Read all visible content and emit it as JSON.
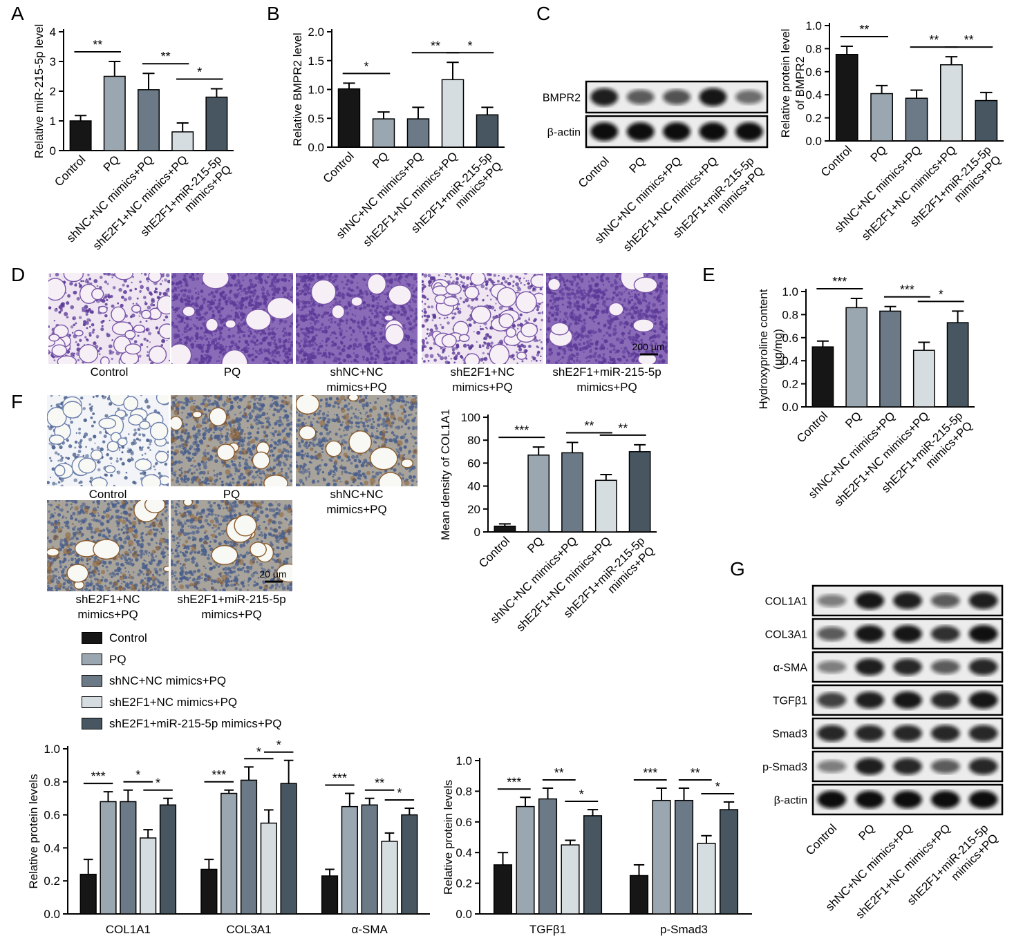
{
  "panel_letters": [
    "A",
    "B",
    "C",
    "D",
    "E",
    "F",
    "G"
  ],
  "colors": {
    "Control": "#161616",
    "PQ": "#9aa6b0",
    "shNC+NC mimics+PQ": "#6b7a86",
    "shE2F1+NC mimics+PQ": "#d6dde0",
    "shE2F1+miR-215-5p mimics+PQ": "#475660"
  },
  "groups": [
    "Control",
    "PQ",
    "shNC+NC mimics+PQ",
    "shE2F1+NC mimics+PQ",
    "shE2F1+miR-215-5p mimics+PQ"
  ],
  "group_tick_lines": [
    [
      "Control"
    ],
    [
      "PQ"
    ],
    [
      "shNC+NC mimics+PQ"
    ],
    [
      "shE2F1+NC mimics+PQ"
    ],
    [
      "shE2F1+miR-215-5p",
      "mimics+PQ"
    ]
  ],
  "legend": [
    "Control",
    "PQ",
    "shNC+NC mimics+PQ",
    "shE2F1+NC mimics+PQ",
    "shE2F1+miR-215-5p mimics+PQ"
  ],
  "micro_captions_D": [
    [
      "Control"
    ],
    [
      "PQ"
    ],
    [
      "shNC+NC",
      "mimics+PQ"
    ],
    [
      "shE2F1+NC",
      "mimics+PQ"
    ],
    [
      "shE2F1+miR-215-5p",
      "mimics+PQ"
    ]
  ],
  "micro_captions_F": [
    [
      "Control"
    ],
    [
      "PQ"
    ],
    [
      "shNC+NC",
      "mimics+PQ"
    ],
    [
      "shE2F1+NC",
      "mimics+PQ"
    ],
    [
      "shE2F1+miR-215-5p",
      "mimics+PQ"
    ]
  ],
  "scale_D": "200 μm",
  "scale_F": "20 μm",
  "blot_C": [
    "BMPR2",
    "β-actin"
  ],
  "blot_G": [
    "COL1A1",
    "COL3A1",
    "α-SMA",
    "TGFβ1",
    "Smad3",
    "p-Smad3",
    "β-actin"
  ],
  "chart_data": [
    {
      "id": "A",
      "type": "bar",
      "ylabel": "Relative miR-215-5p level",
      "ylim": [
        0,
        4
      ],
      "yticks": [
        0,
        1,
        2,
        3,
        4
      ],
      "categories": [
        "Control",
        "PQ",
        "shNC+NC mimics+PQ",
        "shE2F1+NC mimics+PQ",
        "shE2F1+miR-215-5p mimics+PQ"
      ],
      "values": [
        1.0,
        2.5,
        2.05,
        0.63,
        1.8
      ],
      "errors": [
        0.18,
        0.5,
        0.55,
        0.3,
        0.28
      ],
      "significance": [
        {
          "from": 0,
          "to": 1,
          "label": "**"
        },
        {
          "from": 2,
          "to": 3,
          "label": "**"
        },
        {
          "from": 3,
          "to": 4,
          "label": "*"
        }
      ]
    },
    {
      "id": "B",
      "type": "bar",
      "ylabel": "Relative BMPR2 level",
      "ylim": [
        0,
        2
      ],
      "yticks": [
        "0.0",
        "0.5",
        "1.0",
        "1.5",
        "2.0"
      ],
      "categories": [
        "Control",
        "PQ",
        "shNC+NC mimics+PQ",
        "shE2F1+NC mimics+PQ",
        "shE2F1+miR-215-5p mimics+PQ"
      ],
      "values": [
        1.01,
        0.49,
        0.49,
        1.17,
        0.56
      ],
      "errors": [
        0.1,
        0.12,
        0.2,
        0.3,
        0.13
      ],
      "significance": [
        {
          "from": 0,
          "to": 1,
          "label": "*"
        },
        {
          "from": 2,
          "to": 3,
          "label": "**"
        },
        {
          "from": 3,
          "to": 4,
          "label": "*"
        }
      ]
    },
    {
      "id": "C",
      "type": "bar",
      "ylabel": "Relative protein level of BMPR2",
      "ylim": [
        0,
        1
      ],
      "yticks": [
        "0.0",
        "0.2",
        "0.4",
        "0.6",
        "0.8",
        "1.0"
      ],
      "categories": [
        "Control",
        "PQ",
        "shNC+NC mimics+PQ",
        "shE2F1+NC mimics+PQ",
        "shE2F1+miR-215-5p mimics+PQ"
      ],
      "values": [
        0.75,
        0.41,
        0.37,
        0.66,
        0.35
      ],
      "errors": [
        0.07,
        0.07,
        0.07,
        0.07,
        0.07
      ],
      "significance": [
        {
          "from": 0,
          "to": 1,
          "label": "**"
        },
        {
          "from": 2,
          "to": 3,
          "label": "**"
        },
        {
          "from": 3,
          "to": 4,
          "label": "**"
        }
      ]
    },
    {
      "id": "E",
      "type": "bar",
      "ylabel": "Hydroxyproline content (μg/mg)",
      "ylim": [
        0,
        1
      ],
      "yticks": [
        "0.0",
        "0.2",
        "0.4",
        "0.6",
        "0.8",
        "1.0"
      ],
      "categories": [
        "Control",
        "PQ",
        "shNC+NC mimics+PQ",
        "shE2F1+NC mimics+PQ",
        "shE2F1+miR-215-5p mimics+PQ"
      ],
      "values": [
        0.52,
        0.86,
        0.83,
        0.49,
        0.73
      ],
      "errors": [
        0.05,
        0.08,
        0.04,
        0.07,
        0.1
      ],
      "significance": [
        {
          "from": 0,
          "to": 1,
          "label": "***"
        },
        {
          "from": 2,
          "to": 3,
          "label": "***"
        },
        {
          "from": 3,
          "to": 4,
          "label": "*"
        }
      ]
    },
    {
      "id": "F",
      "type": "bar",
      "ylabel": "Mean density of COL1A1",
      "ylim": [
        0,
        100
      ],
      "yticks": [
        0,
        20,
        40,
        60,
        80,
        100
      ],
      "categories": [
        "Control",
        "PQ",
        "shNC+NC mimics+PQ",
        "shE2F1+NC mimics+PQ",
        "shE2F1+miR-215-5p mimics+PQ"
      ],
      "values": [
        5,
        67,
        69,
        45,
        70
      ],
      "errors": [
        2,
        7,
        9,
        5,
        6
      ],
      "significance": [
        {
          "from": 0,
          "to": 1,
          "label": "***"
        },
        {
          "from": 2,
          "to": 3,
          "label": "**"
        },
        {
          "from": 3,
          "to": 4,
          "label": "**"
        }
      ]
    },
    {
      "id": "G1",
      "type": "bar",
      "ylabel": "Relative protein levels",
      "ylim": [
        0,
        1
      ],
      "yticks": [
        "0.0",
        "0.2",
        "0.4",
        "0.6",
        "0.8",
        "1.0"
      ],
      "categories": [
        "COL1A1",
        "COL3A1",
        "α-SMA"
      ],
      "series": [
        {
          "name": "Control",
          "values": [
            0.24,
            0.27,
            0.23
          ],
          "errors": [
            0.09,
            0.06,
            0.04
          ]
        },
        {
          "name": "PQ",
          "values": [
            0.68,
            0.73,
            0.65
          ],
          "errors": [
            0.06,
            0.02,
            0.08
          ]
        },
        {
          "name": "shNC+NC mimics+PQ",
          "values": [
            0.68,
            0.81,
            0.66
          ],
          "errors": [
            0.07,
            0.08,
            0.04
          ]
        },
        {
          "name": "shE2F1+NC mimics+PQ",
          "values": [
            0.46,
            0.55,
            0.44
          ],
          "errors": [
            0.05,
            0.08,
            0.05
          ]
        },
        {
          "name": "shE2F1+miR-215-5p mimics+PQ",
          "values": [
            0.66,
            0.79,
            0.6
          ],
          "errors": [
            0.04,
            0.14,
            0.04
          ]
        }
      ],
      "significance": [
        {
          "cat": 0,
          "from": 0,
          "to": 1,
          "label": "***"
        },
        {
          "cat": 0,
          "from": 2,
          "to": 3,
          "label": "*"
        },
        {
          "cat": 0,
          "from": 3,
          "to": 4,
          "label": "*"
        },
        {
          "cat": 1,
          "from": 0,
          "to": 1,
          "label": "***"
        },
        {
          "cat": 1,
          "from": 2,
          "to": 3,
          "label": "*"
        },
        {
          "cat": 1,
          "from": 3,
          "to": 4,
          "label": "*"
        },
        {
          "cat": 2,
          "from": 0,
          "to": 1,
          "label": "***"
        },
        {
          "cat": 2,
          "from": 2,
          "to": 3,
          "label": "**"
        },
        {
          "cat": 2,
          "from": 3,
          "to": 4,
          "label": "*"
        }
      ]
    },
    {
      "id": "G2",
      "type": "bar",
      "ylabel": "Relative protein levels",
      "ylim": [
        0,
        1
      ],
      "yticks": [
        "0.0",
        "0.2",
        "0.4",
        "0.6",
        "0.8",
        "1.0"
      ],
      "categories": [
        "TGFβ1",
        "p-Smad3"
      ],
      "series": [
        {
          "name": "Control",
          "values": [
            0.32,
            0.25
          ],
          "errors": [
            0.08,
            0.07
          ]
        },
        {
          "name": "PQ",
          "values": [
            0.7,
            0.74
          ],
          "errors": [
            0.06,
            0.08
          ]
        },
        {
          "name": "shNC+NC mimics+PQ",
          "values": [
            0.75,
            0.74
          ],
          "errors": [
            0.07,
            0.08
          ]
        },
        {
          "name": "shE2F1+NC mimics+PQ",
          "values": [
            0.45,
            0.46
          ],
          "errors": [
            0.03,
            0.05
          ]
        },
        {
          "name": "shE2F1+miR-215-5p mimics+PQ",
          "values": [
            0.64,
            0.68
          ],
          "errors": [
            0.04,
            0.05
          ]
        }
      ],
      "significance": [
        {
          "cat": 0,
          "from": 0,
          "to": 1,
          "label": "***"
        },
        {
          "cat": 0,
          "from": 2,
          "to": 3,
          "label": "**"
        },
        {
          "cat": 0,
          "from": 3,
          "to": 4,
          "label": "*"
        },
        {
          "cat": 1,
          "from": 0,
          "to": 1,
          "label": "***"
        },
        {
          "cat": 1,
          "from": 2,
          "to": 3,
          "label": "**"
        },
        {
          "cat": 1,
          "from": 3,
          "to": 4,
          "label": "*"
        }
      ]
    }
  ]
}
